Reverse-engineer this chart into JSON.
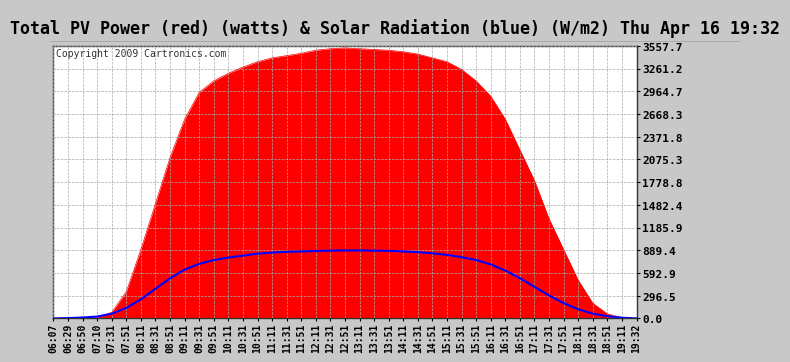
{
  "title": "Total PV Power (red) (watts) & Solar Radiation (blue) (W/m2) Thu Apr 16 19:32",
  "copyright": "Copyright 2009 Cartronics.com",
  "yticks": [
    0.0,
    296.5,
    592.9,
    889.4,
    1185.9,
    1482.4,
    1778.8,
    2075.3,
    2371.8,
    2668.3,
    2964.7,
    3261.2,
    3557.7
  ],
  "ylim": [
    0,
    3557.7
  ],
  "background_color": "#c8c8c8",
  "plot_bg_color": "#ffffff",
  "grid_color": "#aaaaaa",
  "x_labels": [
    "06:07",
    "06:29",
    "06:50",
    "07:10",
    "07:31",
    "07:51",
    "08:11",
    "08:31",
    "08:51",
    "09:11",
    "09:31",
    "09:51",
    "10:11",
    "10:31",
    "10:51",
    "11:11",
    "11:31",
    "11:51",
    "12:11",
    "12:31",
    "12:51",
    "13:11",
    "13:31",
    "13:51",
    "14:11",
    "14:31",
    "14:51",
    "15:11",
    "15:31",
    "15:51",
    "16:11",
    "16:31",
    "16:51",
    "17:11",
    "17:31",
    "17:51",
    "18:11",
    "18:31",
    "18:51",
    "19:11",
    "19:32"
  ],
  "pv_power": [
    0,
    0,
    5,
    15,
    80,
    350,
    900,
    1500,
    2100,
    2600,
    2950,
    3100,
    3200,
    3280,
    3350,
    3400,
    3430,
    3460,
    3500,
    3520,
    3530,
    3520,
    3510,
    3500,
    3480,
    3450,
    3400,
    3350,
    3250,
    3100,
    2900,
    2600,
    2200,
    1800,
    1300,
    900,
    500,
    200,
    60,
    10,
    0
  ],
  "solar_rad_axis": [
    0,
    2,
    5,
    10,
    25,
    55,
    100,
    155,
    210,
    255,
    285,
    305,
    318,
    328,
    338,
    344,
    348,
    350,
    352,
    354,
    355,
    355,
    354,
    353,
    350,
    346,
    340,
    332,
    320,
    305,
    282,
    250,
    210,
    165,
    120,
    80,
    48,
    25,
    12,
    4,
    0
  ],
  "solar_scale": 2.5,
  "red_color": "#ff0000",
  "blue_color": "#0000ff",
  "title_bg": "#c8c8c8",
  "title_fontsize": 12,
  "tick_fontsize": 8,
  "copyright_fontsize": 7,
  "grid_linestyle": "--",
  "grid_linewidth": 0.5
}
